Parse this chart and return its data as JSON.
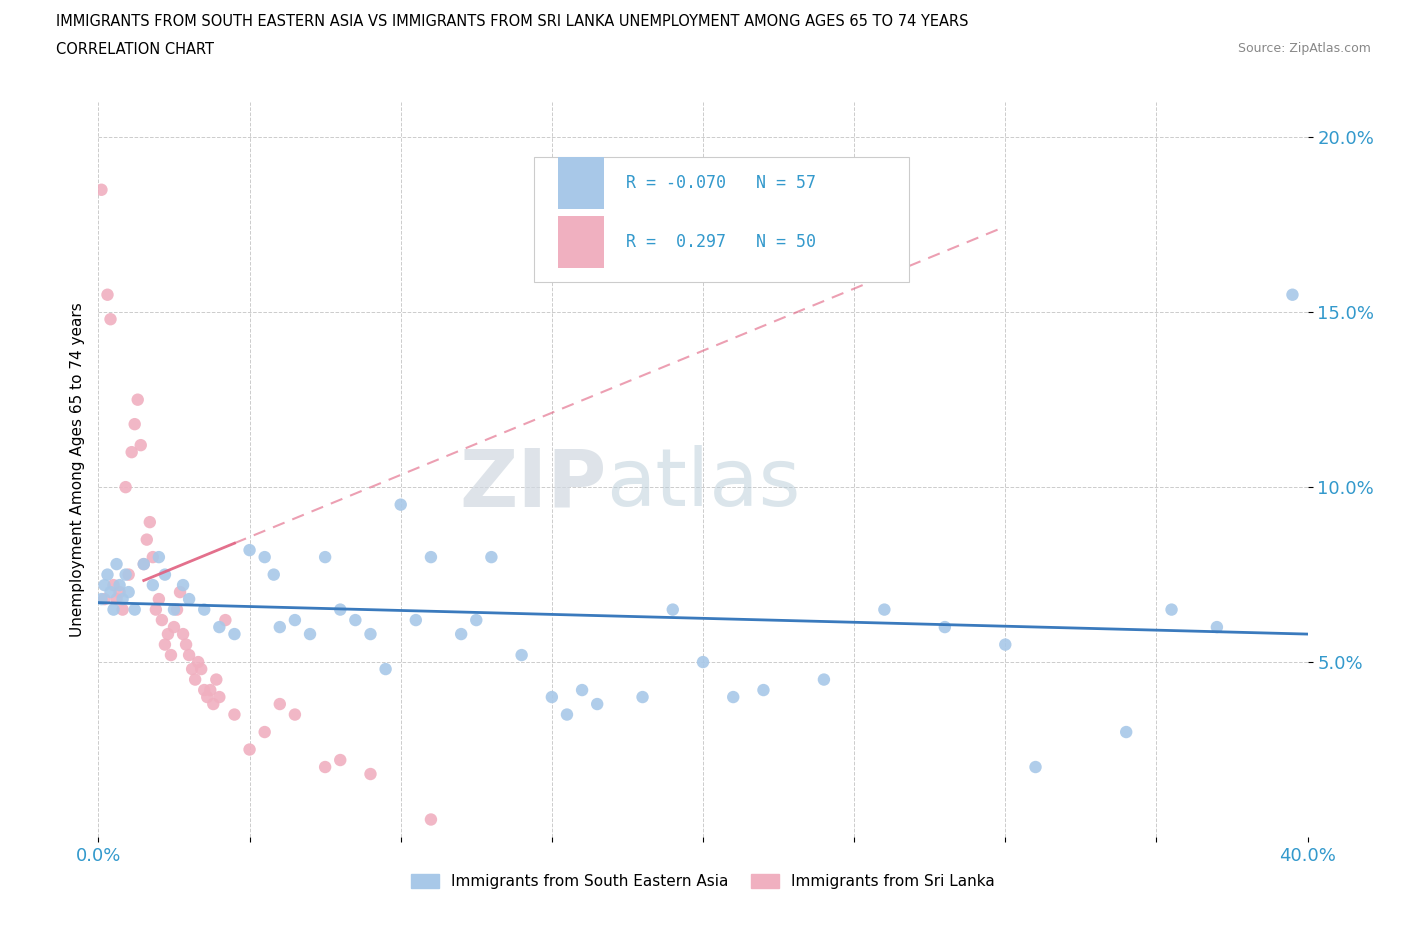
{
  "title_line1": "IMMIGRANTS FROM SOUTH EASTERN ASIA VS IMMIGRANTS FROM SRI LANKA UNEMPLOYMENT AMONG AGES 65 TO 74 YEARS",
  "title_line2": "CORRELATION CHART",
  "source_text": "Source: ZipAtlas.com",
  "ylabel": "Unemployment Among Ages 65 to 74 years",
  "xlim": [
    0.0,
    0.4
  ],
  "ylim": [
    0.0,
    0.21
  ],
  "xticks": [
    0.0,
    0.05,
    0.1,
    0.15,
    0.2,
    0.25,
    0.3,
    0.35,
    0.4
  ],
  "ytick_positions": [
    0.05,
    0.1,
    0.15,
    0.2
  ],
  "ytick_labels": [
    "5.0%",
    "10.0%",
    "15.0%",
    "20.0%"
  ],
  "R_sea": -0.07,
  "N_sea": 57,
  "R_sri": 0.297,
  "N_sri": 50,
  "color_sea": "#a8c8e8",
  "color_sri": "#f0b0c0",
  "line_color_sea": "#3a7abd",
  "line_color_sri": "#e06080",
  "watermark_zip": "ZIP",
  "watermark_atlas": "atlas",
  "sea_x": [
    0.001,
    0.002,
    0.003,
    0.004,
    0.005,
    0.006,
    0.007,
    0.008,
    0.009,
    0.01,
    0.012,
    0.015,
    0.018,
    0.02,
    0.022,
    0.025,
    0.028,
    0.03,
    0.035,
    0.04,
    0.045,
    0.05,
    0.055,
    0.058,
    0.06,
    0.065,
    0.07,
    0.075,
    0.08,
    0.085,
    0.09,
    0.095,
    0.1,
    0.105,
    0.11,
    0.12,
    0.125,
    0.13,
    0.14,
    0.15,
    0.155,
    0.16,
    0.165,
    0.18,
    0.19,
    0.2,
    0.21,
    0.22,
    0.24,
    0.26,
    0.28,
    0.3,
    0.31,
    0.34,
    0.355,
    0.37,
    0.395
  ],
  "sea_y": [
    0.068,
    0.072,
    0.075,
    0.07,
    0.065,
    0.078,
    0.072,
    0.068,
    0.075,
    0.07,
    0.065,
    0.078,
    0.072,
    0.08,
    0.075,
    0.065,
    0.072,
    0.068,
    0.065,
    0.06,
    0.058,
    0.082,
    0.08,
    0.075,
    0.06,
    0.062,
    0.058,
    0.08,
    0.065,
    0.062,
    0.058,
    0.048,
    0.095,
    0.062,
    0.08,
    0.058,
    0.062,
    0.08,
    0.052,
    0.04,
    0.035,
    0.042,
    0.038,
    0.04,
    0.065,
    0.05,
    0.04,
    0.042,
    0.045,
    0.065,
    0.06,
    0.055,
    0.02,
    0.03,
    0.065,
    0.06,
    0.155
  ],
  "sri_x": [
    0.001,
    0.002,
    0.003,
    0.004,
    0.005,
    0.006,
    0.007,
    0.008,
    0.009,
    0.01,
    0.011,
    0.012,
    0.013,
    0.014,
    0.015,
    0.016,
    0.017,
    0.018,
    0.019,
    0.02,
    0.021,
    0.022,
    0.023,
    0.024,
    0.025,
    0.026,
    0.027,
    0.028,
    0.029,
    0.03,
    0.031,
    0.032,
    0.033,
    0.034,
    0.035,
    0.036,
    0.037,
    0.038,
    0.039,
    0.04,
    0.042,
    0.045,
    0.05,
    0.055,
    0.06,
    0.065,
    0.075,
    0.08,
    0.09,
    0.11
  ],
  "sri_y": [
    0.185,
    0.068,
    0.155,
    0.148,
    0.072,
    0.068,
    0.07,
    0.065,
    0.1,
    0.075,
    0.11,
    0.118,
    0.125,
    0.112,
    0.078,
    0.085,
    0.09,
    0.08,
    0.065,
    0.068,
    0.062,
    0.055,
    0.058,
    0.052,
    0.06,
    0.065,
    0.07,
    0.058,
    0.055,
    0.052,
    0.048,
    0.045,
    0.05,
    0.048,
    0.042,
    0.04,
    0.042,
    0.038,
    0.045,
    0.04,
    0.062,
    0.035,
    0.025,
    0.03,
    0.038,
    0.035,
    0.02,
    0.022,
    0.018,
    0.005
  ],
  "sri_trend_x": [
    0.0,
    0.4
  ],
  "sri_trend_y_start": 0.068,
  "sri_trend_y_end": 0.21
}
